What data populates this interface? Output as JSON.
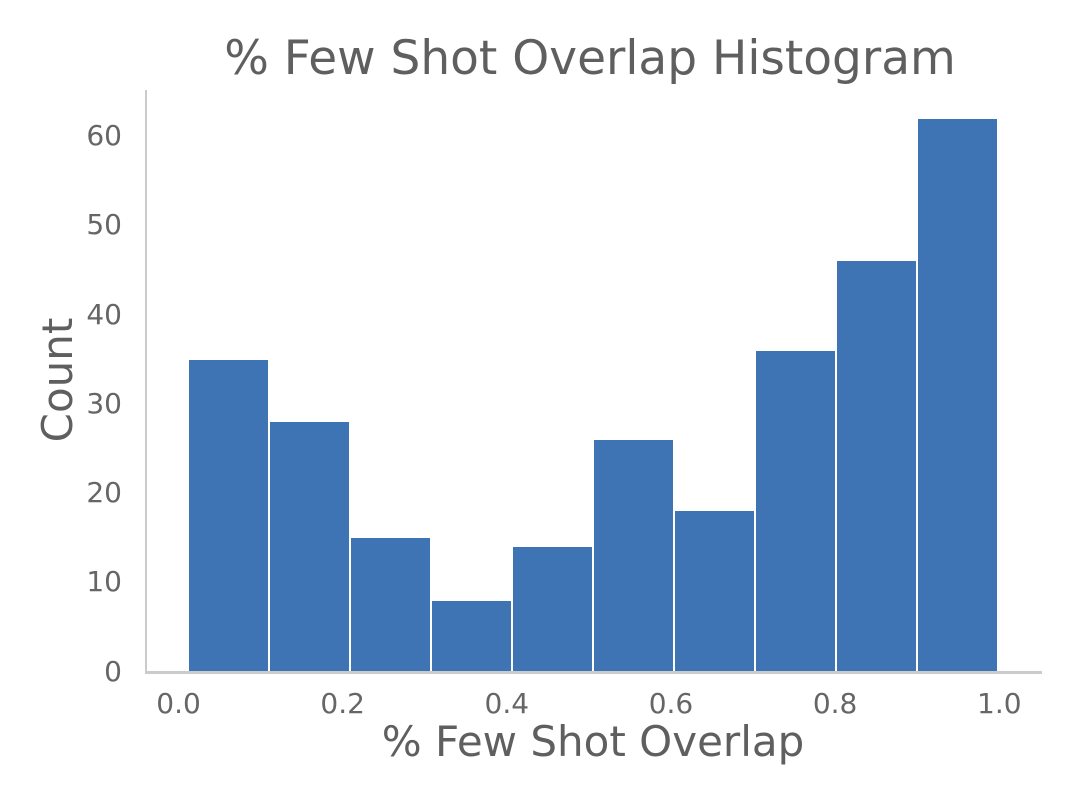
{
  "chart_data": {
    "type": "bar",
    "chart_kind": "histogram",
    "title": "% Few Shot Overlap Histogram",
    "xlabel": "% Few Shot Overlap",
    "ylabel": "Count",
    "bin_edges": [
      0.011,
      0.1098,
      0.2086,
      0.3074,
      0.4062,
      0.505,
      0.6038,
      0.7026,
      0.8014,
      0.9002,
      0.999
    ],
    "counts": [
      35,
      28,
      15,
      8,
      14,
      26,
      18,
      36,
      46,
      62
    ],
    "x_tick_labels": [
      "0.0",
      "0.2",
      "0.4",
      "0.6",
      "0.8",
      "1.0"
    ],
    "x_tick_values": [
      0.0,
      0.2,
      0.4,
      0.6,
      0.8,
      1.0
    ],
    "y_tick_labels": [
      "0",
      "10",
      "20",
      "30",
      "40",
      "50",
      "60"
    ],
    "y_tick_values": [
      0,
      10,
      20,
      30,
      40,
      50,
      60
    ],
    "xlim": [
      -0.0384,
      1.0484
    ],
    "ylim": [
      0,
      65.1
    ],
    "grid": false,
    "legend": null,
    "bar_color": "#3E74B4",
    "bar_edge_color": "#ffffff",
    "spine_color": "#cbcbcb",
    "title_color": "#5f5f5f",
    "label_color": "#5f5f5f",
    "tick_color": "#666666"
  }
}
